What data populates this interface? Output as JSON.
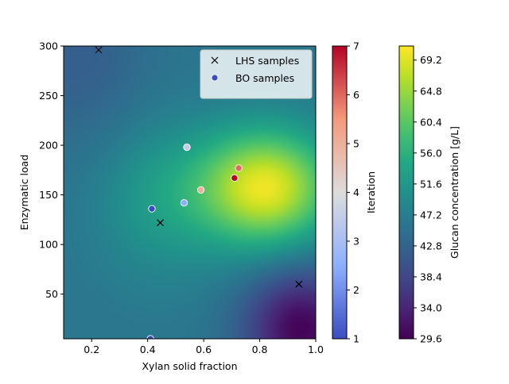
{
  "chart_data": {
    "type": "scatter",
    "xlabel": "Xylan solid fraction",
    "ylabel": "Enzymatic load",
    "xlim": [
      0.1,
      1.0
    ],
    "ylim": [
      5,
      300
    ],
    "x_ticks": [
      0.2,
      0.4,
      0.6,
      0.8,
      1.0
    ],
    "x_tick_labels": [
      "0.2",
      "0.4",
      "0.6",
      "0.8",
      "1.0"
    ],
    "y_ticks": [
      50,
      100,
      150,
      200,
      250,
      300
    ],
    "y_tick_labels": [
      "50",
      "100",
      "150",
      "200",
      "250",
      "300"
    ],
    "background": {
      "type": "heatmap",
      "colormap": "viridis",
      "label": "Glucan concentration [g/L]",
      "range": [
        29.6,
        71.2
      ],
      "ticks": [
        29.6,
        34.0,
        38.4,
        42.8,
        47.2,
        51.6,
        56.0,
        60.4,
        64.8,
        69.2
      ],
      "tick_labels": [
        "29.6",
        "34.0",
        "38.4",
        "42.8",
        "47.2",
        "51.6",
        "56.0",
        "60.4",
        "64.8",
        "69.2"
      ]
    },
    "series": [
      {
        "name": "LHS samples",
        "marker": "x",
        "color": "#000000",
        "points": [
          {
            "x": 0.225,
            "y": 296
          },
          {
            "x": 0.445,
            "y": 122
          },
          {
            "x": 0.94,
            "y": 60
          }
        ]
      },
      {
        "name": "BO samples",
        "marker": "o",
        "colored_by": "Iteration",
        "legend_color": "#3b4cc0",
        "points": [
          {
            "x": 0.41,
            "y": 5,
            "iteration": 1
          },
          {
            "x": 0.415,
            "y": 136,
            "iteration": 1
          },
          {
            "x": 0.53,
            "y": 142,
            "iteration": 2.5
          },
          {
            "x": 0.54,
            "y": 198,
            "iteration": 3.5
          },
          {
            "x": 0.59,
            "y": 155,
            "iteration": 5
          },
          {
            "x": 0.725,
            "y": 177,
            "iteration": 6
          },
          {
            "x": 0.71,
            "y": 167,
            "iteration": 7
          }
        ]
      }
    ],
    "iteration_colorbar": {
      "label": "Iteration",
      "colormap": "coolwarm",
      "range": [
        1,
        7
      ],
      "ticks": [
        1,
        2,
        3,
        4,
        5,
        6,
        7
      ],
      "tick_labels": [
        "1",
        "2",
        "3",
        "4",
        "5",
        "6",
        "7"
      ]
    },
    "legend_position": "top-right"
  }
}
